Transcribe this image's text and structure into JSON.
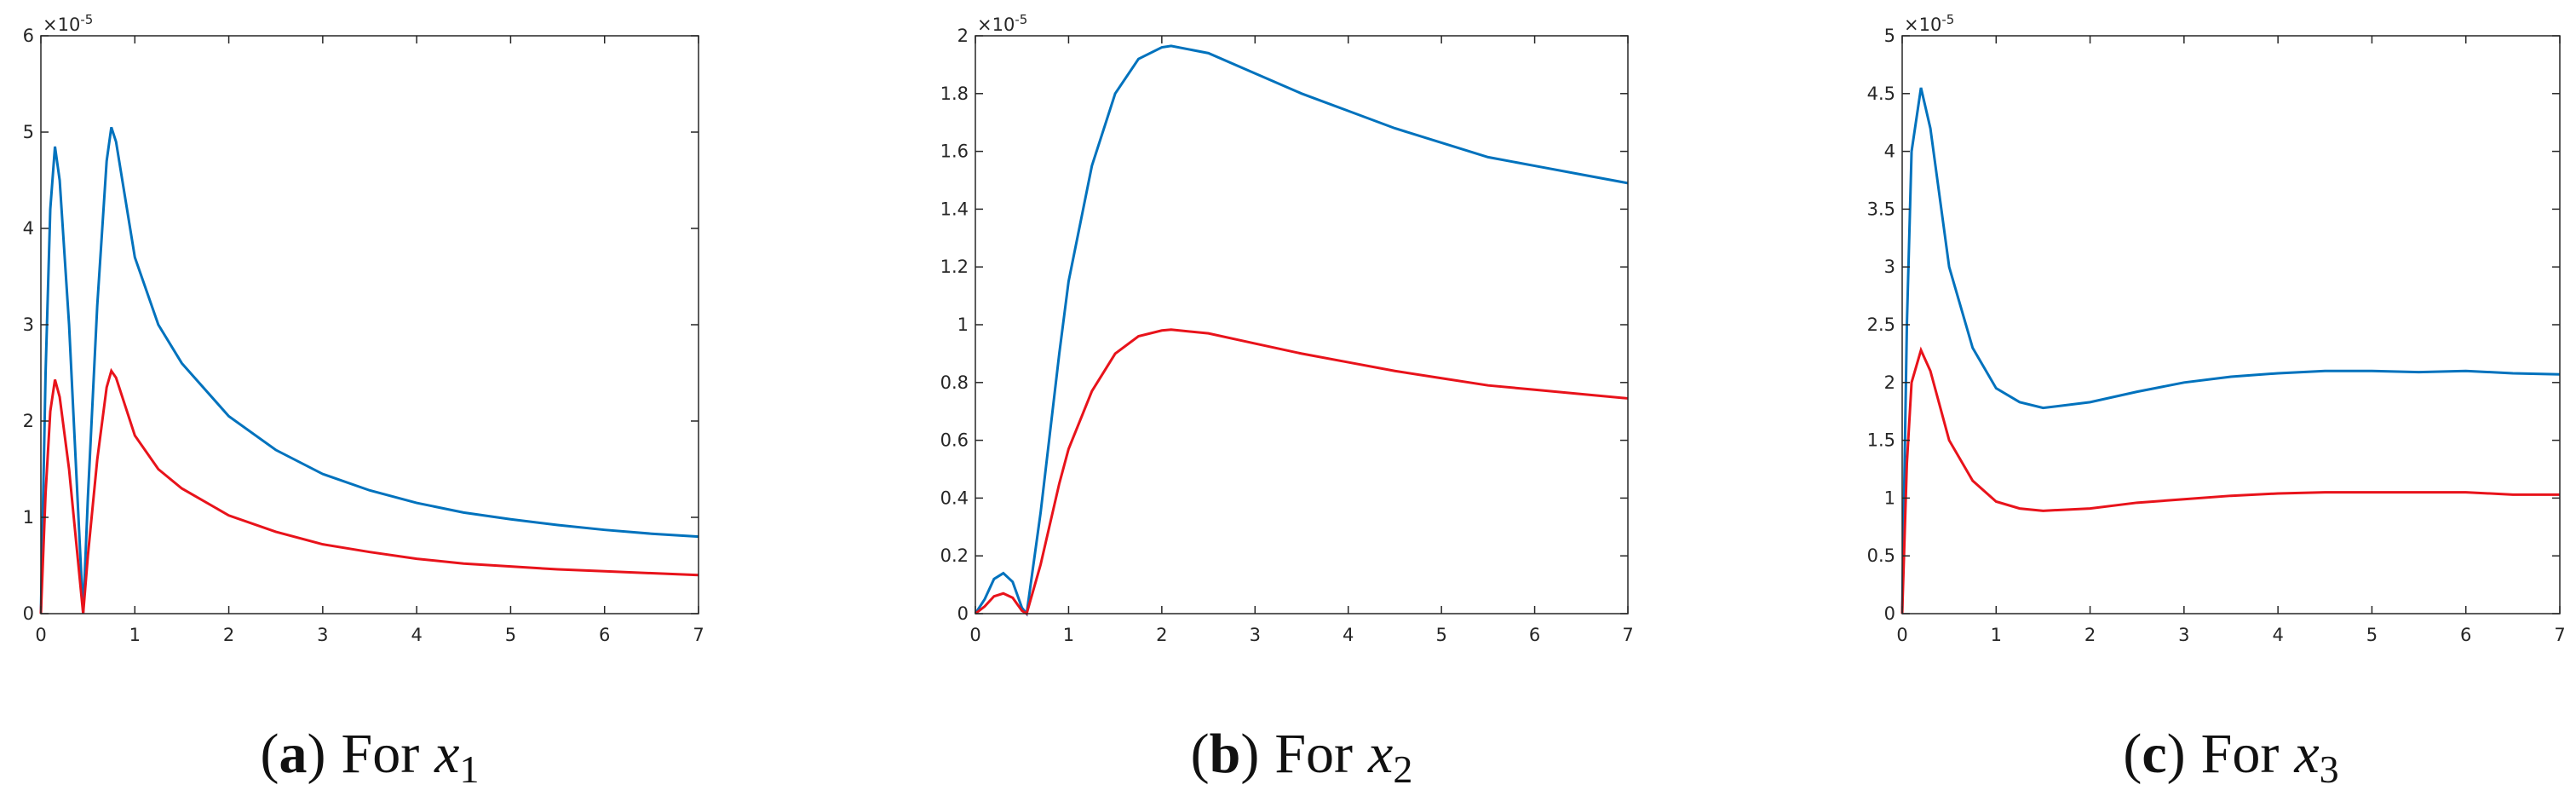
{
  "chart_data": [
    {
      "type": "line",
      "xlim": [
        0,
        7
      ],
      "xticks": [
        0,
        1,
        2,
        3,
        4,
        5,
        6,
        7
      ],
      "ylim": [
        0,
        6
      ],
      "yticks": [
        0,
        1,
        2,
        3,
        4,
        5,
        6
      ],
      "multiplier": "×10",
      "multiplier_exp": "-5",
      "caption_open": "(",
      "caption_label": "a",
      "caption_close": ")",
      "caption_text": "For",
      "caption_var": "x",
      "caption_sub": "1",
      "x": [
        0,
        0.05,
        0.1,
        0.15,
        0.2,
        0.3,
        0.4,
        0.45,
        0.5,
        0.6,
        0.7,
        0.75,
        0.8,
        0.9,
        1,
        1.25,
        1.5,
        2,
        2.5,
        3,
        3.5,
        4,
        4.5,
        5,
        5.5,
        6,
        6.5,
        7
      ],
      "series": [
        {
          "color": "#0072bd",
          "values": [
            0,
            2.5,
            4.2,
            4.85,
            4.5,
            3.0,
            1.0,
            0,
            1.2,
            3.2,
            4.7,
            5.05,
            4.9,
            4.3,
            3.7,
            3.0,
            2.6,
            2.05,
            1.7,
            1.45,
            1.28,
            1.15,
            1.05,
            0.98,
            0.92,
            0.87,
            0.83,
            0.8
          ]
        },
        {
          "color": "#e8131b",
          "values": [
            0,
            1.25,
            2.1,
            2.43,
            2.25,
            1.5,
            0.5,
            0,
            0.6,
            1.6,
            2.35,
            2.52,
            2.45,
            2.15,
            1.85,
            1.5,
            1.3,
            1.02,
            0.85,
            0.72,
            0.64,
            0.57,
            0.52,
            0.49,
            0.46,
            0.44,
            0.42,
            0.4
          ]
        }
      ]
    },
    {
      "type": "line",
      "xlim": [
        0,
        7
      ],
      "xticks": [
        0,
        1,
        2,
        3,
        4,
        5,
        6,
        7
      ],
      "ylim": [
        0,
        2
      ],
      "yticks": [
        0,
        0.2,
        0.4,
        0.6,
        0.8,
        1,
        1.2,
        1.4,
        1.6,
        1.8,
        2
      ],
      "multiplier": "×10",
      "multiplier_exp": "-5",
      "caption_open": "(",
      "caption_label": "b",
      "caption_close": ")",
      "caption_text": "For",
      "caption_var": "x",
      "caption_sub": "2",
      "x": [
        0,
        0.1,
        0.2,
        0.3,
        0.4,
        0.5,
        0.55,
        0.7,
        0.9,
        1,
        1.25,
        1.5,
        1.75,
        2,
        2.1,
        2.5,
        3,
        3.5,
        4,
        4.5,
        5,
        5.5,
        6,
        6.5,
        7
      ],
      "series": [
        {
          "color": "#0072bd",
          "values": [
            0,
            0.05,
            0.12,
            0.14,
            0.11,
            0.02,
            0,
            0.35,
            0.9,
            1.15,
            1.55,
            1.8,
            1.92,
            1.96,
            1.965,
            1.94,
            1.87,
            1.8,
            1.74,
            1.68,
            1.63,
            1.58,
            1.55,
            1.52,
            1.49
          ]
        },
        {
          "color": "#e8131b",
          "values": [
            0,
            0.025,
            0.06,
            0.07,
            0.055,
            0.01,
            0,
            0.17,
            0.45,
            0.57,
            0.77,
            0.9,
            0.96,
            0.98,
            0.983,
            0.97,
            0.935,
            0.9,
            0.87,
            0.84,
            0.815,
            0.79,
            0.775,
            0.76,
            0.745
          ]
        }
      ]
    },
    {
      "type": "line",
      "xlim": [
        0,
        7
      ],
      "xticks": [
        0,
        1,
        2,
        3,
        4,
        5,
        6,
        7
      ],
      "ylim": [
        0,
        5
      ],
      "yticks": [
        0,
        0.5,
        1,
        1.5,
        2,
        2.5,
        3,
        3.5,
        4,
        4.5,
        5
      ],
      "multiplier": "×10",
      "multiplier_exp": "-5",
      "caption_open": "(",
      "caption_label": "c",
      "caption_close": ")",
      "caption_text": "For",
      "caption_var": "x",
      "caption_sub": "3",
      "x": [
        0,
        0.05,
        0.1,
        0.2,
        0.3,
        0.5,
        0.75,
        1,
        1.25,
        1.5,
        2,
        2.5,
        3,
        3.5,
        4,
        4.5,
        5,
        5.5,
        6,
        6.5,
        7
      ],
      "series": [
        {
          "color": "#0072bd",
          "values": [
            0,
            2.5,
            4.0,
            4.55,
            4.2,
            3.0,
            2.3,
            1.95,
            1.83,
            1.78,
            1.83,
            1.92,
            2.0,
            2.05,
            2.08,
            2.1,
            2.1,
            2.09,
            2.1,
            2.08,
            2.07
          ]
        },
        {
          "color": "#e8131b",
          "values": [
            0,
            1.3,
            2.0,
            2.28,
            2.1,
            1.5,
            1.15,
            0.97,
            0.91,
            0.89,
            0.91,
            0.96,
            0.99,
            1.02,
            1.04,
            1.05,
            1.05,
            1.05,
            1.05,
            1.03,
            1.03
          ]
        }
      ]
    }
  ]
}
